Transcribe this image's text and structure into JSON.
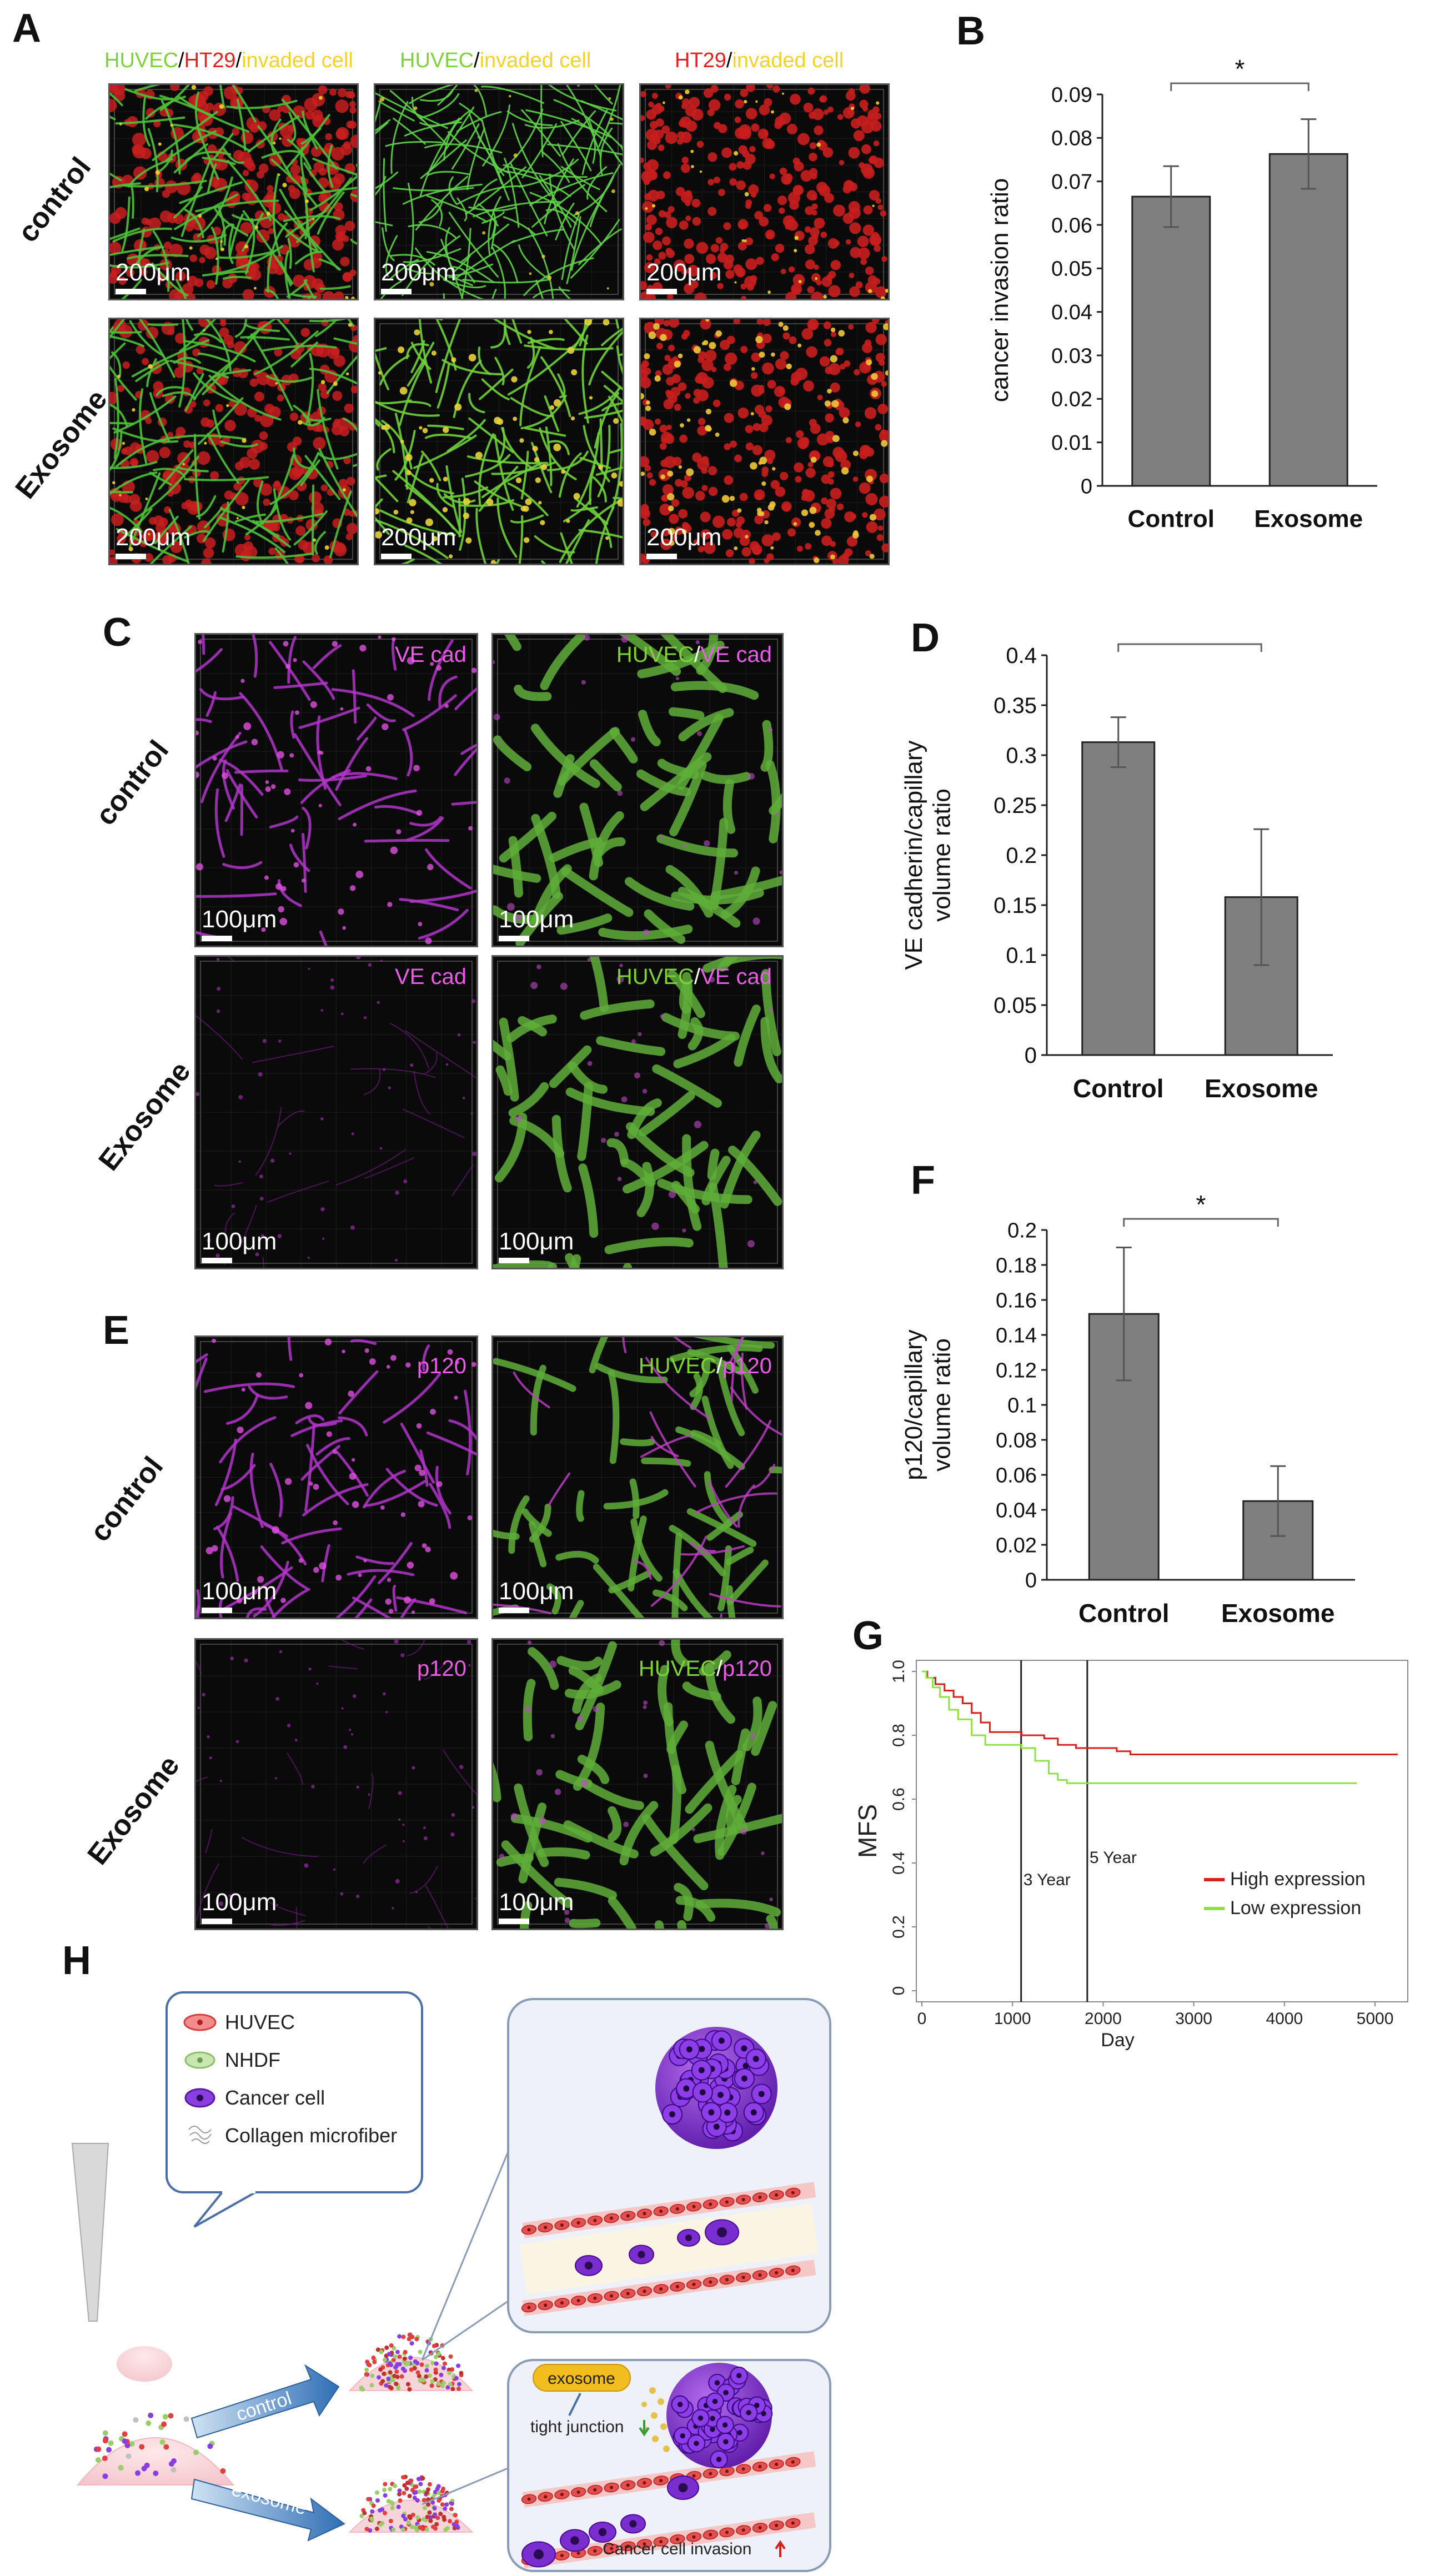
{
  "panels": {
    "A": {
      "letter": "A",
      "titles": [
        [
          {
            "t": "HUVEC",
            "c": "green"
          },
          {
            "t": "/",
            "c": "dark"
          },
          {
            "t": "HT29",
            "c": "red"
          },
          {
            "t": "/",
            "c": "dark"
          },
          {
            "t": "invaded  cell",
            "c": "yellow"
          }
        ],
        [
          {
            "t": "HUVEC",
            "c": "green"
          },
          {
            "t": "/",
            "c": "dark"
          },
          {
            "t": "invaded  cell",
            "c": "yellow"
          }
        ],
        [
          {
            "t": "HT29",
            "c": "red"
          },
          {
            "t": "/",
            "c": "dark"
          },
          {
            "t": "invaded  cell",
            "c": "yellow"
          }
        ]
      ],
      "rows": [
        "control",
        "Exosome"
      ],
      "scale": "200μm"
    },
    "C": {
      "letter": "C",
      "rows": [
        "control",
        "Exosome"
      ],
      "scale": "100μm",
      "label_ve": "VE cad",
      "label_huvec": "HUVEC",
      "label_slash": "/",
      "label_ve2": "VE cad"
    },
    "E": {
      "letter": "E",
      "rows": [
        "control",
        "Exosome"
      ],
      "scale": "100μm",
      "label_p": "p120",
      "label_huvec": "HUVEC",
      "label_slash": "/",
      "label_p2": "p120"
    },
    "H": {
      "letter": "H",
      "legend": [
        "HUVEC",
        "NHDF",
        "Cancer cell",
        "Collagen microfiber"
      ],
      "arrow_control": "control",
      "arrow_exosome": "exosome",
      "exosome_tag": "exosome",
      "tight_junction": "tight junction",
      "invasion": "Cancer cell invasion"
    }
  },
  "chart_data": [
    {
      "id": "B",
      "type": "bar",
      "letter": "B",
      "categories": [
        "Control",
        "Exosome"
      ],
      "values": [
        0.0665,
        0.0763
      ],
      "errors": [
        0.007,
        0.008
      ],
      "ylabel": "cancer invasion ratio",
      "ylim": [
        0,
        0.09
      ],
      "yticks": [
        "0",
        "0.01",
        "0.02",
        "0.03",
        "0.04",
        "0.05",
        "0.06",
        "0.07",
        "0.08",
        "0.09"
      ],
      "significance": "*",
      "bar_color": "#7f7f7f"
    },
    {
      "id": "D",
      "type": "bar",
      "letter": "D",
      "categories": [
        "Control",
        "Exosome"
      ],
      "values": [
        0.313,
        0.158
      ],
      "errors": [
        0.025,
        0.068
      ],
      "ylabel": "VE cadherin/capillary volume ratio",
      "ylabel_lines": [
        "VE cadherin/capillary",
        "volume ratio"
      ],
      "ylim": [
        0,
        0.4
      ],
      "yticks": [
        "0",
        "0.05",
        "0.1",
        "0.15",
        "0.2",
        "0.25",
        "0.3",
        "0.35",
        "0.4"
      ],
      "significance": "*",
      "bar_color": "#7f7f7f"
    },
    {
      "id": "F",
      "type": "bar",
      "letter": "F",
      "categories": [
        "Control",
        "Exosome"
      ],
      "values": [
        0.152,
        0.045
      ],
      "errors": [
        0.038,
        0.02
      ],
      "ylabel": "p120/capillary volume ratio",
      "ylabel_lines": [
        "p120/capillary",
        "volume ratio"
      ],
      "ylim": [
        0,
        0.2
      ],
      "yticks": [
        "0",
        "0.02",
        "0.04",
        "0.06",
        "0.08",
        "0.1",
        "0.12",
        "0.14",
        "0.16",
        "0.18",
        "0.2"
      ],
      "significance": "*",
      "bar_color": "#7f7f7f"
    },
    {
      "id": "G",
      "type": "line",
      "letter": "G",
      "xlabel": "Day",
      "ylabel": "MFS",
      "xlim": [
        0,
        5300
      ],
      "ylim": [
        0,
        1.0
      ],
      "xticks": [
        "0",
        "1000",
        "2000",
        "3000",
        "4000",
        "5000"
      ],
      "yticks": [
        "0",
        "0.2",
        "0.4",
        "0.6",
        "0.8",
        "1.0"
      ],
      "vlines": [
        {
          "x": 1095,
          "label": "3 Year"
        },
        {
          "x": 1825,
          "label": "5 Year"
        }
      ],
      "series": [
        {
          "name": "High expression",
          "color": "#d42020",
          "points": [
            [
              0,
              1.0
            ],
            [
              60,
              0.98
            ],
            [
              150,
              0.96
            ],
            [
              250,
              0.94
            ],
            [
              350,
              0.92
            ],
            [
              450,
              0.9
            ],
            [
              550,
              0.87
            ],
            [
              650,
              0.84
            ],
            [
              750,
              0.81
            ],
            [
              1100,
              0.8
            ],
            [
              1350,
              0.79
            ],
            [
              1500,
              0.77
            ],
            [
              1700,
              0.76
            ],
            [
              2150,
              0.75
            ],
            [
              2300,
              0.74
            ],
            [
              5250,
              0.74
            ]
          ]
        },
        {
          "name": "Low expression",
          "color": "#8fe040",
          "points": [
            [
              0,
              1.0
            ],
            [
              50,
              0.98
            ],
            [
              120,
              0.95
            ],
            [
              200,
              0.92
            ],
            [
              300,
              0.88
            ],
            [
              400,
              0.85
            ],
            [
              550,
              0.8
            ],
            [
              700,
              0.77
            ],
            [
              1100,
              0.76
            ],
            [
              1250,
              0.72
            ],
            [
              1400,
              0.68
            ],
            [
              1500,
              0.66
            ],
            [
              1600,
              0.65
            ],
            [
              4800,
              0.65
            ]
          ]
        }
      ]
    }
  ]
}
